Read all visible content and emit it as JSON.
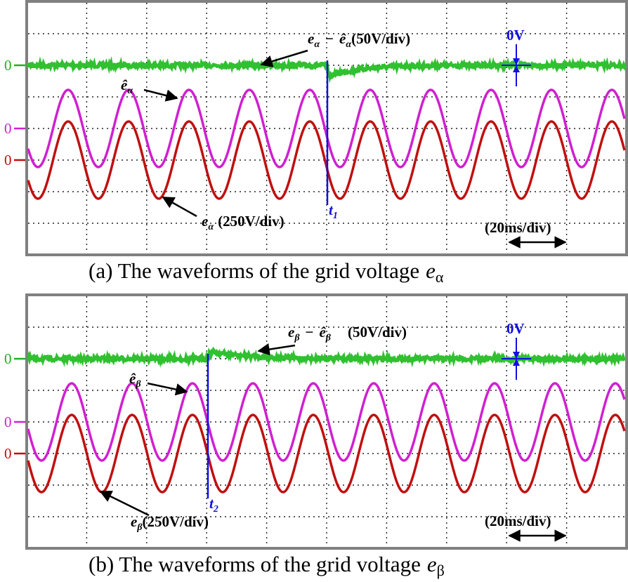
{
  "panels": [
    {
      "zero_labels": [
        "0",
        "0",
        "0"
      ],
      "difference_label": {
        "e": "e",
        "sub": "α",
        "minus": "−",
        "hat": "ê",
        "hat_sub": "α",
        "scale": "(50V/div)"
      },
      "estimate_label": {
        "hat": "ê",
        "sub": "α"
      },
      "signal_label": {
        "e": "e",
        "sub": "α",
        "scale": "(250V/div)"
      },
      "time_marker": {
        "t": "t",
        "sub": "1"
      },
      "offset_label": "0V",
      "time_scale": "(20ms/div)",
      "caption": {
        "text": "(a) The waveforms of the grid voltage",
        "e": "e",
        "sub": "α"
      }
    },
    {
      "zero_labels": [
        "0",
        "0",
        "0"
      ],
      "difference_label": {
        "e": "e",
        "sub": "β",
        "minus": "−",
        "hat": "ê",
        "hat_sub": "β",
        "scale": "(50V/div)"
      },
      "estimate_label": {
        "hat": "ê",
        "sub": "β"
      },
      "signal_label": {
        "e": "e",
        "sub": "β",
        "scale": "(250V/div)"
      },
      "time_marker": {
        "t": "t",
        "sub": "2"
      },
      "offset_label": "0V",
      "time_scale": "(20ms/div)",
      "caption": {
        "text": "(b) The waveforms of the grid voltage",
        "e": "e",
        "sub": "β"
      }
    }
  ]
}
